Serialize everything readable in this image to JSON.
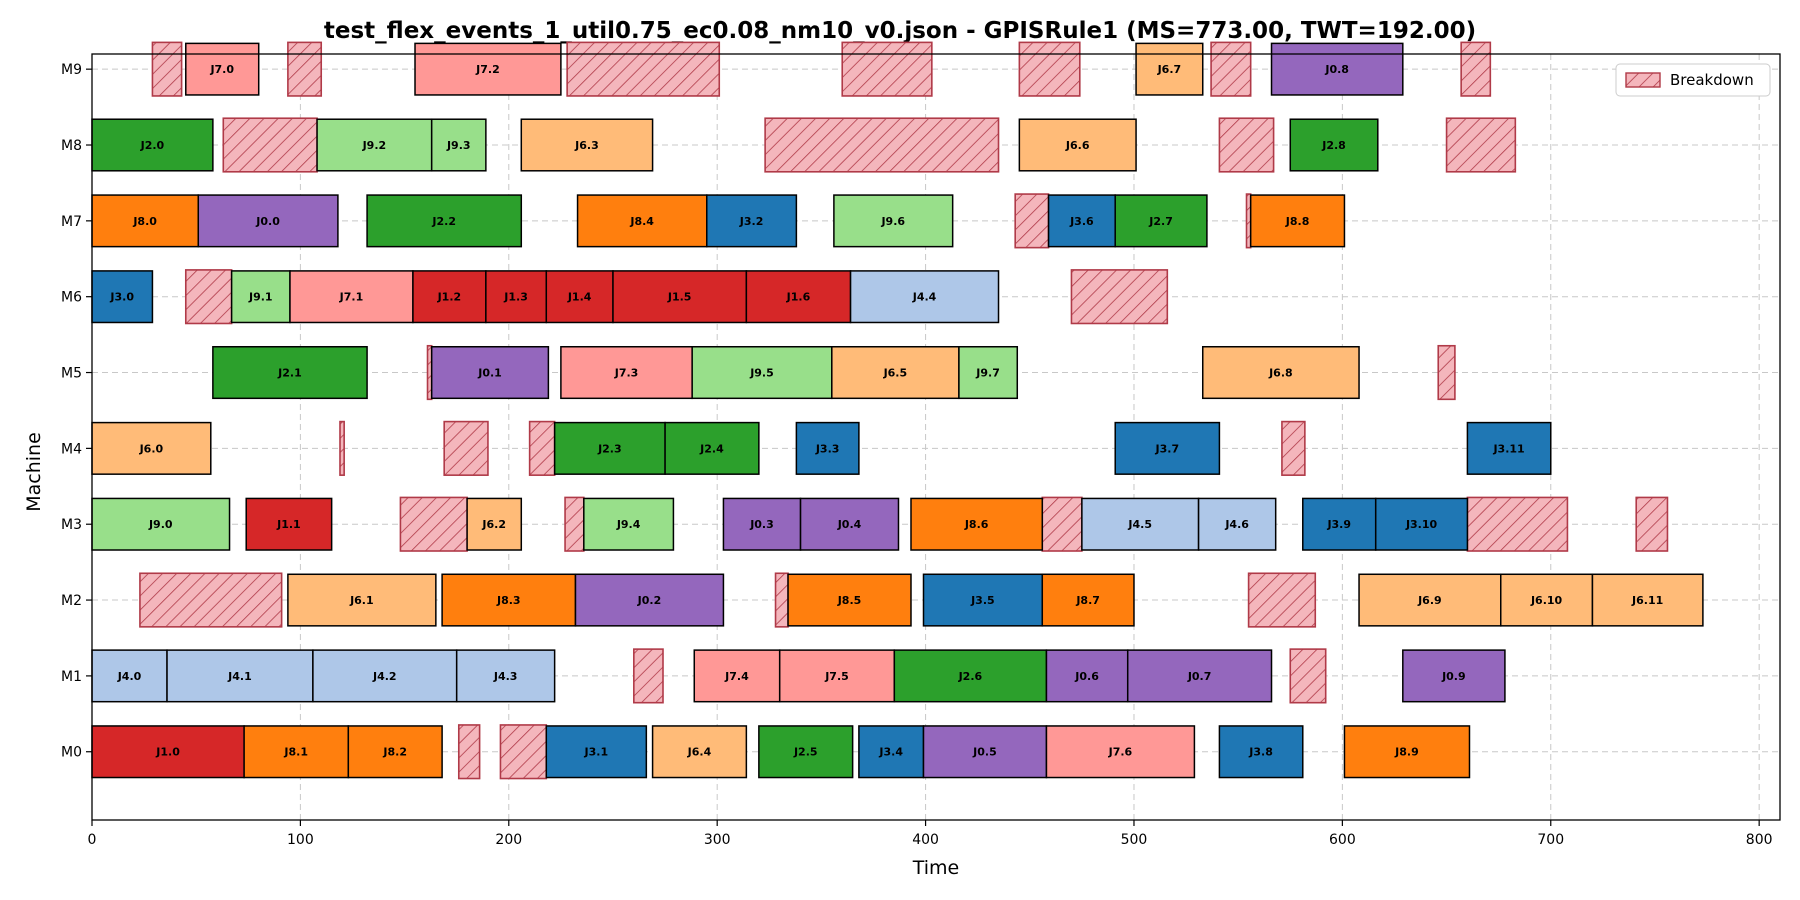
{
  "chart_data": {
    "type": "gantt",
    "title": "test_flex_events_1_util0.75_ec0.08_nm10_v0.json - GPISRule1 (MS=773.00, TWT=192.00)",
    "xlabel": "Time",
    "ylabel": "Machine",
    "xlim": [
      0,
      810
    ],
    "x_ticks": [
      0,
      100,
      200,
      300,
      400,
      500,
      600,
      700,
      800
    ],
    "machines": [
      "M0",
      "M1",
      "M2",
      "M3",
      "M4",
      "M5",
      "M6",
      "M7",
      "M8",
      "M9"
    ],
    "grid": true,
    "legend": {
      "position": "top-right",
      "entries": [
        "Breakdown"
      ]
    },
    "colors": {
      "J0": "#9467bd",
      "J1": "#d62728",
      "J2": "#2ca02c",
      "J3": "#1f77b4",
      "J4": "#aec7e8",
      "J6": "#ffbb78",
      "J7": "#ff9896",
      "J8": "#ff7f0e",
      "J9": "#98df8a",
      "breakdown_fill": "#f4b6bc",
      "breakdown_edge": "#b03a48"
    },
    "operations": [
      {
        "label": "J1.0",
        "job": "J1",
        "machine": "M0",
        "start": 0,
        "end": 73
      },
      {
        "label": "J8.1",
        "job": "J8",
        "machine": "M0",
        "start": 73,
        "end": 123
      },
      {
        "label": "J8.2",
        "job": "J8",
        "machine": "M0",
        "start": 123,
        "end": 168
      },
      {
        "label": "J3.1",
        "job": "J3",
        "machine": "M0",
        "start": 218,
        "end": 266
      },
      {
        "label": "J6.4",
        "job": "J6",
        "machine": "M0",
        "start": 269,
        "end": 314
      },
      {
        "label": "J2.5",
        "job": "J2",
        "machine": "M0",
        "start": 320,
        "end": 365
      },
      {
        "label": "J3.4",
        "job": "J3",
        "machine": "M0",
        "start": 368,
        "end": 399
      },
      {
        "label": "J0.5",
        "job": "J0",
        "machine": "M0",
        "start": 399,
        "end": 458
      },
      {
        "label": "J7.6",
        "job": "J7",
        "machine": "M0",
        "start": 458,
        "end": 529
      },
      {
        "label": "J3.8",
        "job": "J3",
        "machine": "M0",
        "start": 541,
        "end": 581
      },
      {
        "label": "J8.9",
        "job": "J8",
        "machine": "M0",
        "start": 601,
        "end": 661
      },
      {
        "label": "J4.0",
        "job": "J4",
        "machine": "M1",
        "start": 0,
        "end": 36
      },
      {
        "label": "J4.1",
        "job": "J4",
        "machine": "M1",
        "start": 36,
        "end": 106
      },
      {
        "label": "J4.2",
        "job": "J4",
        "machine": "M1",
        "start": 106,
        "end": 175
      },
      {
        "label": "J4.3",
        "job": "J4",
        "machine": "M1",
        "start": 175,
        "end": 222
      },
      {
        "label": "J7.4",
        "job": "J7",
        "machine": "M1",
        "start": 289,
        "end": 330
      },
      {
        "label": "J7.5",
        "job": "J7",
        "machine": "M1",
        "start": 330,
        "end": 385
      },
      {
        "label": "J2.6",
        "job": "J2",
        "machine": "M1",
        "start": 385,
        "end": 458
      },
      {
        "label": "J0.6",
        "job": "J0",
        "machine": "M1",
        "start": 458,
        "end": 497
      },
      {
        "label": "J0.7",
        "job": "J0",
        "machine": "M1",
        "start": 497,
        "end": 566
      },
      {
        "label": "J0.9",
        "job": "J0",
        "machine": "M1",
        "start": 629,
        "end": 678
      },
      {
        "label": "J6.1",
        "job": "J6",
        "machine": "M2",
        "start": 94,
        "end": 165
      },
      {
        "label": "J8.3",
        "job": "J8",
        "machine": "M2",
        "start": 168,
        "end": 232
      },
      {
        "label": "J0.2",
        "job": "J0",
        "machine": "M2",
        "start": 232,
        "end": 303
      },
      {
        "label": "J8.5",
        "job": "J8",
        "machine": "M2",
        "start": 334,
        "end": 393
      },
      {
        "label": "J3.5",
        "job": "J3",
        "machine": "M2",
        "start": 399,
        "end": 456
      },
      {
        "label": "J8.7",
        "job": "J8",
        "machine": "M2",
        "start": 456,
        "end": 500
      },
      {
        "label": "J6.9",
        "job": "J6",
        "machine": "M2",
        "start": 608,
        "end": 676
      },
      {
        "label": "J6.10",
        "job": "J6",
        "machine": "M2",
        "start": 676,
        "end": 720
      },
      {
        "label": "J6.11",
        "job": "J6",
        "machine": "M2",
        "start": 720,
        "end": 773
      },
      {
        "label": "J9.0",
        "job": "J9",
        "machine": "M3",
        "start": 0,
        "end": 66
      },
      {
        "label": "J1.1",
        "job": "J1",
        "machine": "M3",
        "start": 74,
        "end": 115
      },
      {
        "label": "J6.2",
        "job": "J6",
        "machine": "M3",
        "start": 180,
        "end": 206
      },
      {
        "label": "J9.4",
        "job": "J9",
        "machine": "M3",
        "start": 236,
        "end": 279
      },
      {
        "label": "J0.3",
        "job": "J0",
        "machine": "M3",
        "start": 303,
        "end": 340
      },
      {
        "label": "J0.4",
        "job": "J0",
        "machine": "M3",
        "start": 340,
        "end": 387
      },
      {
        "label": "J8.6",
        "job": "J8",
        "machine": "M3",
        "start": 393,
        "end": 456
      },
      {
        "label": "J4.5",
        "job": "J4",
        "machine": "M3",
        "start": 475,
        "end": 531
      },
      {
        "label": "J4.6",
        "job": "J4",
        "machine": "M3",
        "start": 531,
        "end": 568
      },
      {
        "label": "J3.9",
        "job": "J3",
        "machine": "M3",
        "start": 581,
        "end": 616
      },
      {
        "label": "J3.10",
        "job": "J3",
        "machine": "M3",
        "start": 616,
        "end": 660
      },
      {
        "label": "J6.0",
        "job": "J6",
        "machine": "M4",
        "start": 0,
        "end": 57
      },
      {
        "label": "J2.3",
        "job": "J2",
        "machine": "M4",
        "start": 222,
        "end": 275
      },
      {
        "label": "J2.4",
        "job": "J2",
        "machine": "M4",
        "start": 275,
        "end": 320
      },
      {
        "label": "J3.3",
        "job": "J3",
        "machine": "M4",
        "start": 338,
        "end": 368
      },
      {
        "label": "J3.7",
        "job": "J3",
        "machine": "M4",
        "start": 491,
        "end": 541
      },
      {
        "label": "J3.11",
        "job": "J3",
        "machine": "M4",
        "start": 660,
        "end": 700
      },
      {
        "label": "J2.1",
        "job": "J2",
        "machine": "M5",
        "start": 58,
        "end": 132
      },
      {
        "label": "J0.1",
        "job": "J0",
        "machine": "M5",
        "start": 163,
        "end": 219
      },
      {
        "label": "J7.3",
        "job": "J7",
        "machine": "M5",
        "start": 225,
        "end": 288
      },
      {
        "label": "J9.5",
        "job": "J9",
        "machine": "M5",
        "start": 288,
        "end": 355
      },
      {
        "label": "J6.5",
        "job": "J6",
        "machine": "M5",
        "start": 355,
        "end": 416
      },
      {
        "label": "J9.7",
        "job": "J9",
        "machine": "M5",
        "start": 416,
        "end": 444
      },
      {
        "label": "J6.8",
        "job": "J6",
        "machine": "M5",
        "start": 533,
        "end": 608
      },
      {
        "label": "J3.0",
        "job": "J3",
        "machine": "M6",
        "start": 0,
        "end": 29
      },
      {
        "label": "J9.1",
        "job": "J9",
        "machine": "M6",
        "start": 67,
        "end": 95
      },
      {
        "label": "J7.1",
        "job": "J7",
        "machine": "M6",
        "start": 95,
        "end": 154
      },
      {
        "label": "J1.2",
        "job": "J1",
        "machine": "M6",
        "start": 154,
        "end": 189
      },
      {
        "label": "J1.3",
        "job": "J1",
        "machine": "M6",
        "start": 189,
        "end": 218
      },
      {
        "label": "J1.4",
        "job": "J1",
        "machine": "M6",
        "start": 218,
        "end": 250
      },
      {
        "label": "J1.5",
        "job": "J1",
        "machine": "M6",
        "start": 250,
        "end": 314
      },
      {
        "label": "J1.6",
        "job": "J1",
        "machine": "M6",
        "start": 314,
        "end": 364
      },
      {
        "label": "J4.4",
        "job": "J4",
        "machine": "M6",
        "start": 364,
        "end": 435
      },
      {
        "label": "J8.0",
        "job": "J8",
        "machine": "M7",
        "start": 0,
        "end": 51
      },
      {
        "label": "J0.0",
        "job": "J0",
        "machine": "M7",
        "start": 51,
        "end": 118
      },
      {
        "label": "J2.2",
        "job": "J2",
        "machine": "M7",
        "start": 132,
        "end": 206
      },
      {
        "label": "J8.4",
        "job": "J8",
        "machine": "M7",
        "start": 233,
        "end": 295
      },
      {
        "label": "J3.2",
        "job": "J3",
        "machine": "M7",
        "start": 295,
        "end": 338
      },
      {
        "label": "J9.6",
        "job": "J9",
        "machine": "M7",
        "start": 356,
        "end": 413
      },
      {
        "label": "J3.6",
        "job": "J3",
        "machine": "M7",
        "start": 459,
        "end": 491
      },
      {
        "label": "J2.7",
        "job": "J2",
        "machine": "M7",
        "start": 491,
        "end": 535
      },
      {
        "label": "J8.8",
        "job": "J8",
        "machine": "M7",
        "start": 556,
        "end": 601
      },
      {
        "label": "J2.0",
        "job": "J2",
        "machine": "M8",
        "start": 0,
        "end": 58
      },
      {
        "label": "J9.2",
        "job": "J9",
        "machine": "M8",
        "start": 108,
        "end": 163
      },
      {
        "label": "J9.3",
        "job": "J9",
        "machine": "M8",
        "start": 163,
        "end": 189
      },
      {
        "label": "J6.3",
        "job": "J6",
        "machine": "M8",
        "start": 206,
        "end": 269
      },
      {
        "label": "J6.6",
        "job": "J6",
        "machine": "M8",
        "start": 445,
        "end": 501
      },
      {
        "label": "J2.8",
        "job": "J2",
        "machine": "M8",
        "start": 575,
        "end": 617
      },
      {
        "label": "J7.0",
        "job": "J7",
        "machine": "M9",
        "start": 45,
        "end": 80
      },
      {
        "label": "J7.2",
        "job": "J7",
        "machine": "M9",
        "start": 155,
        "end": 225
      },
      {
        "label": "J6.7",
        "job": "J6",
        "machine": "M9",
        "start": 501,
        "end": 533
      },
      {
        "label": "J0.8",
        "job": "J0",
        "machine": "M9",
        "start": 566,
        "end": 629
      }
    ],
    "breakdowns": [
      {
        "machine": "M0",
        "start": 176,
        "end": 186
      },
      {
        "machine": "M0",
        "start": 196,
        "end": 218
      },
      {
        "machine": "M1",
        "start": 260,
        "end": 274
      },
      {
        "machine": "M1",
        "start": 575,
        "end": 592
      },
      {
        "machine": "M2",
        "start": 23,
        "end": 91
      },
      {
        "machine": "M2",
        "start": 328,
        "end": 334
      },
      {
        "machine": "M2",
        "start": 555,
        "end": 587
      },
      {
        "machine": "M3",
        "start": 148,
        "end": 180
      },
      {
        "machine": "M3",
        "start": 227,
        "end": 236
      },
      {
        "machine": "M3",
        "start": 456,
        "end": 475
      },
      {
        "machine": "M3",
        "start": 660,
        "end": 708
      },
      {
        "machine": "M3",
        "start": 741,
        "end": 756
      },
      {
        "machine": "M4",
        "start": 119,
        "end": 121
      },
      {
        "machine": "M4",
        "start": 169,
        "end": 190
      },
      {
        "machine": "M4",
        "start": 210,
        "end": 222
      },
      {
        "machine": "M4",
        "start": 571,
        "end": 582
      },
      {
        "machine": "M5",
        "start": 161,
        "end": 163
      },
      {
        "machine": "M5",
        "start": 646,
        "end": 654
      },
      {
        "machine": "M6",
        "start": 45,
        "end": 67
      },
      {
        "machine": "M6",
        "start": 470,
        "end": 516
      },
      {
        "machine": "M7",
        "start": 443,
        "end": 459
      },
      {
        "machine": "M7",
        "start": 554,
        "end": 556
      },
      {
        "machine": "M8",
        "start": 63,
        "end": 108
      },
      {
        "machine": "M8",
        "start": 323,
        "end": 435
      },
      {
        "machine": "M8",
        "start": 541,
        "end": 567
      },
      {
        "machine": "M8",
        "start": 650,
        "end": 683
      },
      {
        "machine": "M9",
        "start": 29,
        "end": 43
      },
      {
        "machine": "M9",
        "start": 94,
        "end": 110
      },
      {
        "machine": "M9",
        "start": 228,
        "end": 301
      },
      {
        "machine": "M9",
        "start": 360,
        "end": 403
      },
      {
        "machine": "M9",
        "start": 445,
        "end": 474
      },
      {
        "machine": "M9",
        "start": 537,
        "end": 556
      },
      {
        "machine": "M9",
        "start": 657,
        "end": 671
      }
    ]
  }
}
